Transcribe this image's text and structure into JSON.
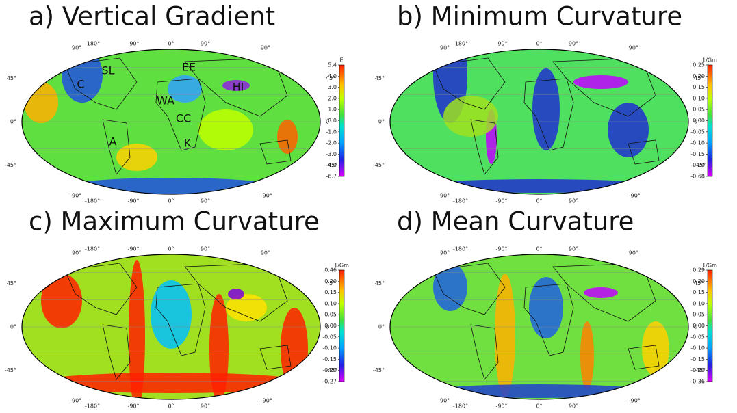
{
  "panels": [
    {
      "title": "a) Vertical Gradient",
      "unit": "E",
      "colorbar_ticks": [
        "5.4",
        "4.0",
        "3.0",
        "2.0",
        "1.0",
        "0.0",
        "-1.0",
        "-2.0",
        "-3.0",
        "-4.0",
        "-6.7"
      ],
      "region_labels": [
        "SL",
        "EE",
        "C",
        "HI",
        "WA",
        "CC",
        "A",
        "K"
      ]
    },
    {
      "title": "b) Minimum Curvature",
      "unit": "1/Gm",
      "colorbar_ticks": [
        "0.25",
        "0.20",
        "0.15",
        "0.10",
        "0.05",
        "0.00",
        "-0.05",
        "-0.10",
        "-0.15",
        "-0.20",
        "-0.68"
      ]
    },
    {
      "title": "c) Maximum Curvature",
      "unit": "1/Gm",
      "colorbar_ticks": [
        "0.46",
        "0.20",
        "0.15",
        "0.10",
        "0.05",
        "0.00",
        "-0.05",
        "-0.10",
        "-0.15",
        "-0.20",
        "-0.27"
      ]
    },
    {
      "title": "d) Mean Curvature",
      "unit": "1/Gm",
      "colorbar_ticks": [
        "0.29",
        "0.20",
        "0.15",
        "0.10",
        "0.05",
        "0.00",
        "-0.05",
        "-0.10",
        "-0.15",
        "-0.20",
        "-0.36"
      ]
    }
  ],
  "graticule": {
    "longitudes": [
      "-180°",
      "-90°",
      "0°",
      "90°"
    ],
    "latitudes": [
      "90°",
      "45°",
      "0°",
      "-45°",
      "-90°"
    ]
  }
}
